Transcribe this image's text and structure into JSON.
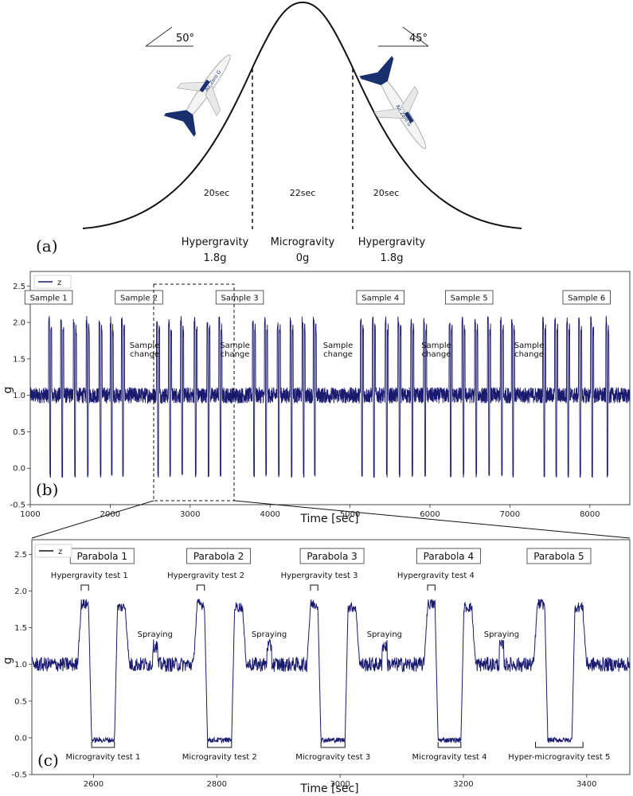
{
  "panel_a": {
    "panel_label": "(a)",
    "angle_left": "50°",
    "angle_right": "45°",
    "durations": [
      "20sec",
      "22sec",
      "20sec"
    ],
    "phases": [
      {
        "name": "Hypergravity",
        "g": "1.8g"
      },
      {
        "name": "Microgravity",
        "g": "0g"
      },
      {
        "name": "Hypergravity",
        "g": "1.8g"
      }
    ],
    "colors": {
      "aircraft_tail": "#1a2f6e",
      "curve": "#111111"
    }
  },
  "chart_data": [
    {
      "type": "line",
      "panel_label": "(b)",
      "xlabel": "Time [sec]",
      "ylabel": "g",
      "xlim": [
        1000,
        8500
      ],
      "ylim": [
        -0.5,
        2.7
      ],
      "xticks": [
        1000,
        2000,
        3000,
        4000,
        5000,
        6000,
        7000,
        8000
      ],
      "yticks": [
        "-0.5",
        "0.0",
        "0.5",
        "1.0",
        "1.5",
        "2.0",
        "2.5"
      ],
      "legend": {
        "position": "top-left",
        "entries": [
          "z"
        ]
      },
      "series": [
        {
          "name": "z",
          "color": "#1a1a6e",
          "baseline": 1.0,
          "high": 2.0,
          "low": -0.1
        }
      ],
      "parabola_times": [
        1250,
        1400,
        1560,
        1720,
        1880,
        2020,
        2160,
        2600,
        2750,
        2900,
        3070,
        3230,
        3380,
        3800,
        3950,
        4110,
        4270,
        4420,
        4560,
        5150,
        5300,
        5460,
        5620,
        5780,
        5940,
        6260,
        6420,
        6580,
        6740,
        6900,
        7040,
        7430,
        7580,
        7730,
        7880,
        8030,
        8220
      ],
      "samples": [
        {
          "label": "Sample 1",
          "x": 1230
        },
        {
          "label": "Sample 2",
          "x": 2360
        },
        {
          "label": "Sample 3",
          "x": 3620
        },
        {
          "label": "Sample 4",
          "x": 5380
        },
        {
          "label": "Sample 5",
          "x": 6490
        },
        {
          "label": "Sample 6",
          "x": 7960
        }
      ],
      "sample_changes": [
        {
          "line1": "Sample",
          "line2": "change",
          "x": 2430
        },
        {
          "line1": "Sample",
          "line2": "change",
          "x": 3560
        },
        {
          "line1": "Sample",
          "line2": "change",
          "x": 4850
        },
        {
          "line1": "Sample",
          "line2": "change",
          "x": 6080
        },
        {
          "line1": "Sample",
          "line2": "change",
          "x": 7240
        }
      ],
      "zoom_window": [
        2500,
        3500
      ]
    },
    {
      "type": "line",
      "panel_label": "(c)",
      "xlabel": "Time [sec]",
      "ylabel": "g",
      "xlim": [
        2500,
        3470
      ],
      "ylim": [
        -0.5,
        2.7
      ],
      "xticks": [
        2600,
        2800,
        3000,
        3200,
        3400
      ],
      "yticks": [
        "-0.5",
        "0.0",
        "0.5",
        "1.0",
        "1.5",
        "2.0",
        "2.5"
      ],
      "legend": {
        "position": "top-left",
        "entries": [
          "z"
        ]
      },
      "series": [
        {
          "name": "z",
          "color": "#1a1a6e",
          "baseline": 1.0,
          "high": 1.85,
          "low": -0.05
        }
      ],
      "parabolas": [
        {
          "label": "Parabola 1",
          "hyper": "Hypergravity test 1",
          "micro": "Microgravity test 1",
          "start": 2580,
          "end": 2648
        },
        {
          "label": "Parabola 2",
          "hyper": "Hypergravity test 2",
          "micro": "Microgravity test 2",
          "start": 2768,
          "end": 2838
        },
        {
          "label": "Parabola 3",
          "hyper": "Hypergravity test 3",
          "micro": "Microgravity test 3",
          "start": 2952,
          "end": 3022
        },
        {
          "label": "Parabola 4",
          "hyper": "Hypergravity test 4",
          "micro": "Microgravity test 4",
          "start": 3142,
          "end": 3210
        },
        {
          "label": "Parabola 5",
          "hyper": "",
          "micro": "Hyper-microgravity test 5",
          "start": 3320,
          "end": 3390
        }
      ],
      "spraying": [
        {
          "label": "Spraying",
          "x": 2700
        },
        {
          "label": "Spraying",
          "x": 2885
        },
        {
          "label": "Spraying",
          "x": 3072
        },
        {
          "label": "Spraying",
          "x": 3262
        }
      ]
    }
  ]
}
